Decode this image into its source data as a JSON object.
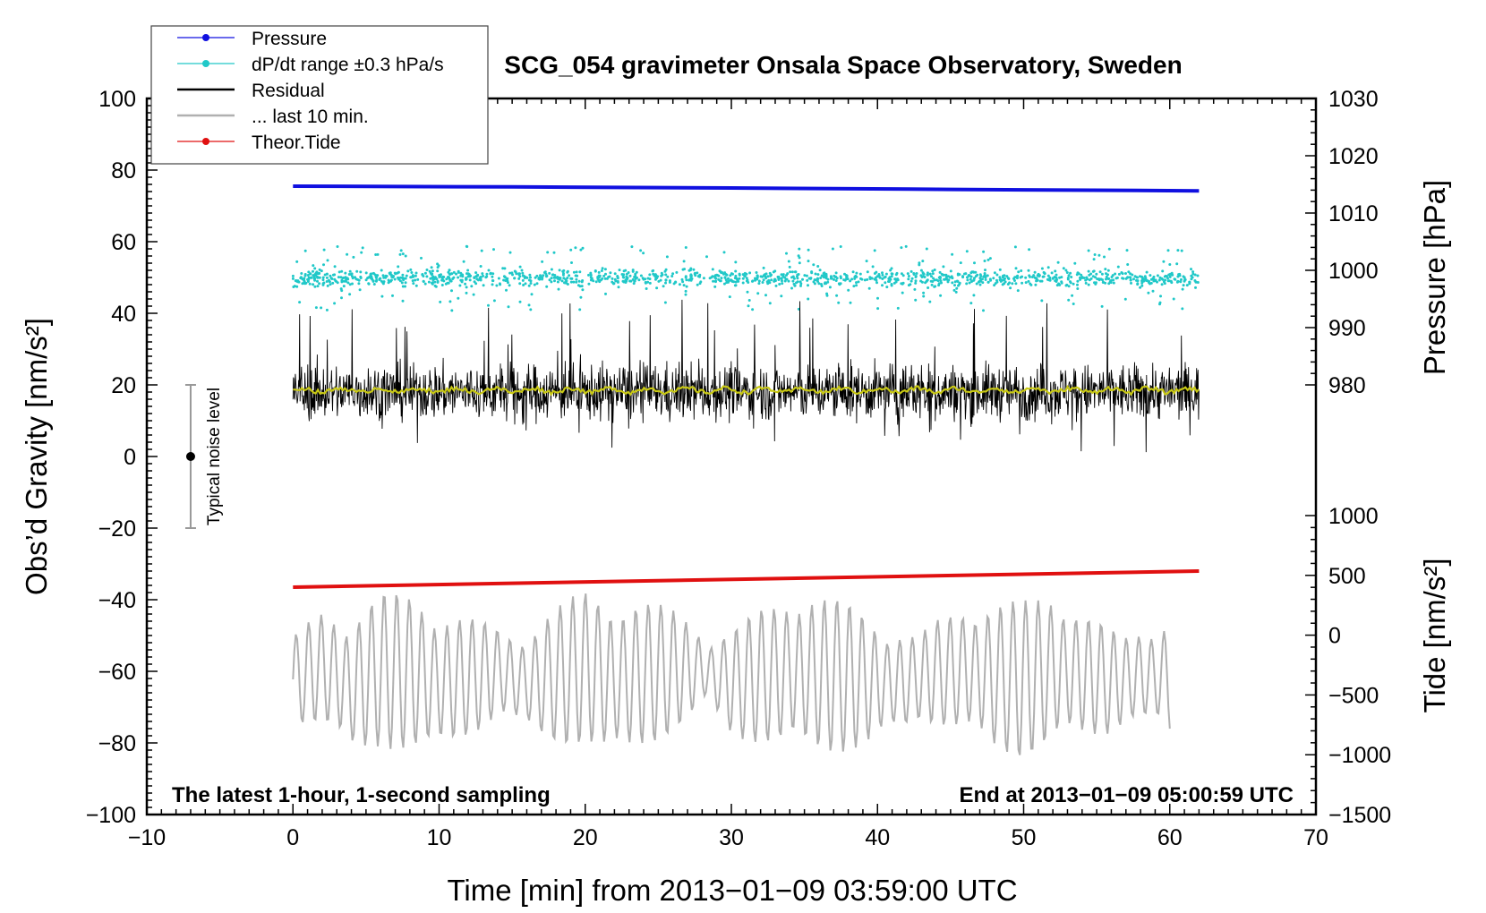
{
  "chart_data": {
    "type": "line",
    "title": "SCG_054 gravimeter Onsala Space Observatory, Sweden",
    "xlabel": "Time [min] from 2013−01−09 03:59:00 UTC",
    "ylabel_left": "Obs’d Gravity [nm/s²]",
    "ylabel_right_top": "Pressure [hPa]",
    "ylabel_right_bottom": "Tide [nm/s²]",
    "xlim": [
      -10,
      70
    ],
    "ylim": [
      -100,
      100
    ],
    "pressure_axis_range": [
      1030,
      980
    ],
    "tide_axis_range": [
      1000,
      -1500
    ],
    "x_ticks": [
      "−10",
      "0",
      "10",
      "20",
      "30",
      "40",
      "50",
      "60",
      "70"
    ],
    "y_ticks": [
      "100",
      "80",
      "60",
      "40",
      "20",
      "0",
      "−20",
      "−40",
      "−60",
      "−80",
      "−100"
    ],
    "pressure_ticks": [
      "1030",
      "1020",
      "1010",
      "1000",
      "990",
      "980"
    ],
    "tide_ticks": [
      "1000",
      "500",
      "0",
      "−500",
      "−1000",
      "−1500"
    ],
    "note_left": "The latest 1-hour, 1-second sampling",
    "note_right": "End at 2013−01−09 05:00:59 UTC",
    "noise_bar": {
      "x": -7,
      "center": 0,
      "low": -20,
      "high": 20,
      "label": "Typical noise level"
    },
    "legend": [
      {
        "label": "Pressure",
        "color": "#1010e0",
        "style": "line-dot"
      },
      {
        "label": "dP/dt range ±0.3 hPa/s",
        "color": "#20c8c8",
        "style": "line-dot"
      },
      {
        "label": "Residual",
        "color": "#000000",
        "style": "line"
      },
      {
        "label": "... last 10 min.",
        "color": "#b0b0b0",
        "style": "line"
      },
      {
        "label": "Theor.Tide",
        "color": "#e01010",
        "style": "line-dot"
      }
    ],
    "series": [
      {
        "name": "Pressure",
        "color": "#1010e0",
        "x": [
          0,
          15,
          30,
          45,
          62
        ],
        "y": [
          75.5,
          75.3,
          75.0,
          74.6,
          74.2
        ]
      },
      {
        "name": "dP/dt range",
        "color": "#20c8c8",
        "x_range": [
          0,
          62
        ],
        "center": 49.8,
        "spread": 7
      },
      {
        "name": "Residual",
        "color": "#000000",
        "x_range": [
          0,
          62
        ],
        "center": 18,
        "spread": 12
      },
      {
        "name": "Residual smoothed",
        "color": "#c8c814",
        "x_range": [
          0,
          62
        ],
        "center": 18.5
      },
      {
        "name": "Theor.Tide",
        "color": "#e01010",
        "x": [
          0,
          62
        ],
        "y": [
          -36.5,
          -32.0
        ]
      },
      {
        "name": "... last 10 min.",
        "color": "#b0b0b0",
        "x": [
          0,
          2,
          4,
          6,
          8,
          10,
          12,
          14,
          16,
          18,
          20,
          22,
          24,
          26,
          28,
          30,
          32,
          34,
          36,
          38,
          40,
          42,
          44,
          46,
          48,
          50,
          52,
          54,
          56,
          58,
          60
        ],
        "y": [
          -66,
          -52,
          -75,
          -55,
          -58,
          -70,
          -63,
          -57,
          -70,
          -62,
          -52,
          -68,
          -60,
          -56,
          -55,
          -70,
          -62,
          -58,
          -60,
          -63,
          -70,
          -68,
          -58,
          -55,
          -63,
          -66,
          -55,
          -60,
          -68,
          -62,
          -64
        ]
      }
    ]
  }
}
